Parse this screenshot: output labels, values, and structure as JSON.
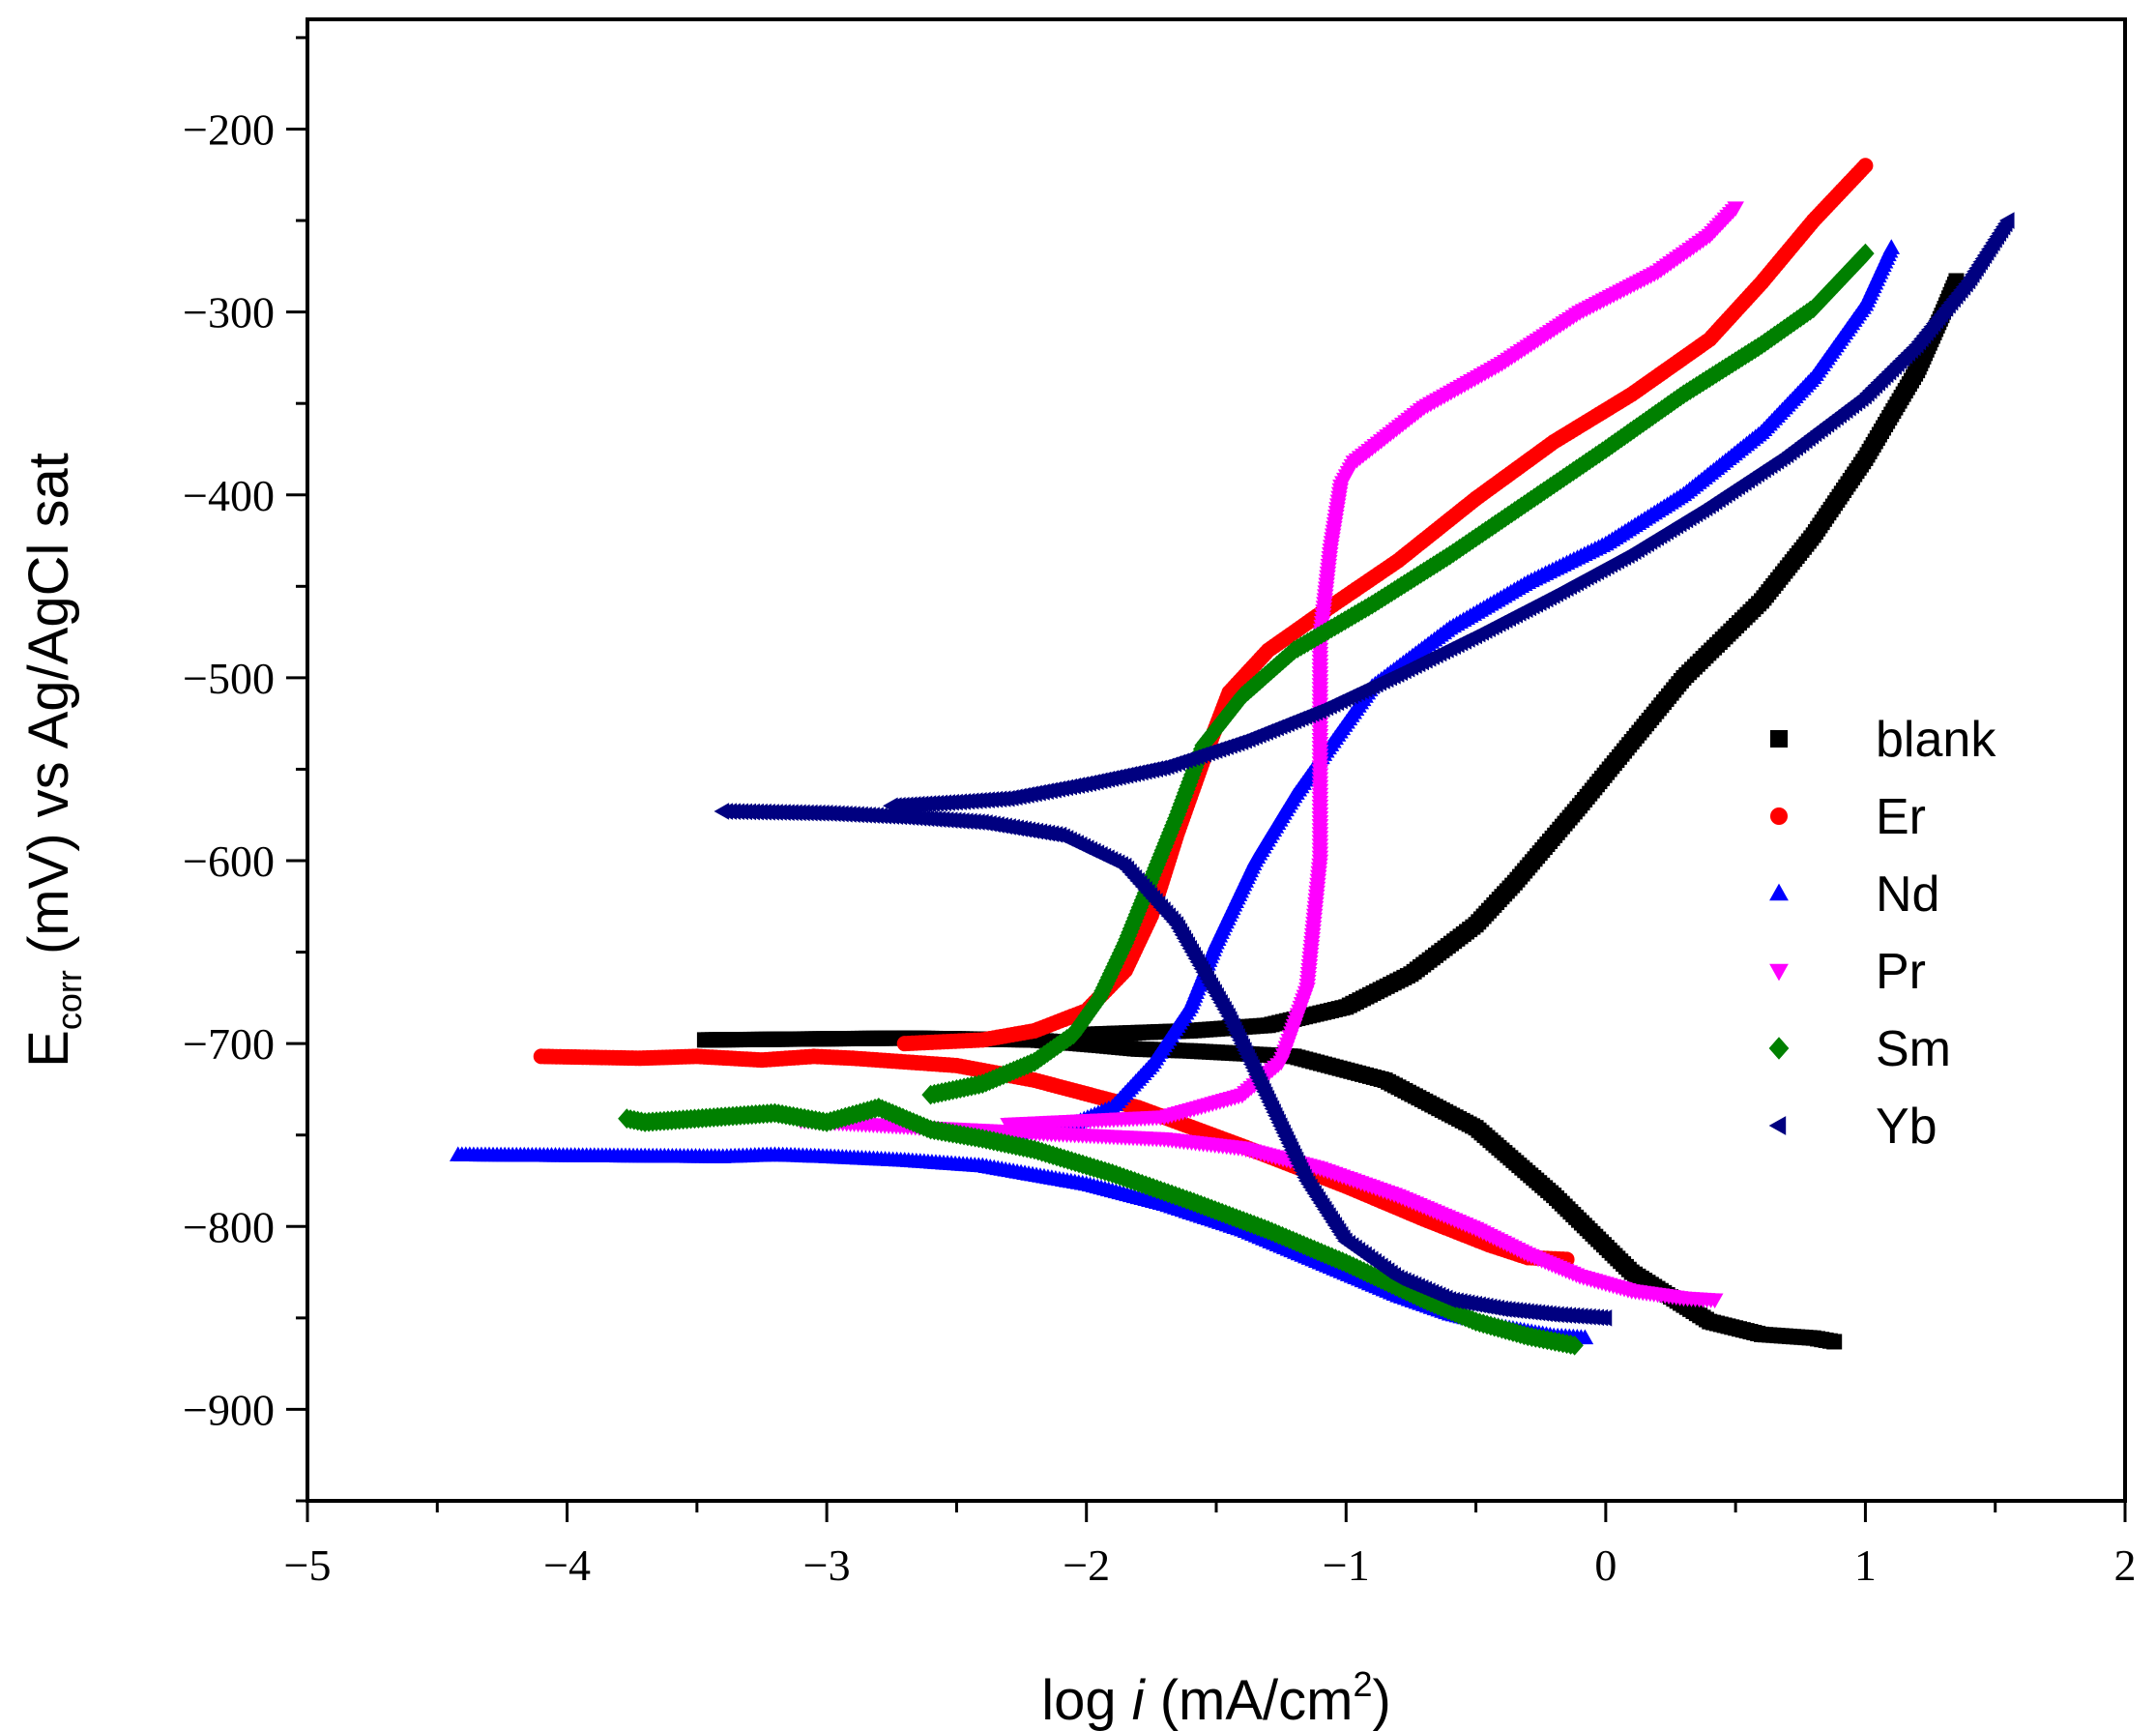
{
  "chart_data": {
    "type": "scatter",
    "title": "",
    "xlabel": {
      "prefix": "log ",
      "italic": "i",
      "unit_open": " (mA/cm",
      "superscript": "2",
      "unit_close": ")"
    },
    "ylabel": {
      "main": "E",
      "subscript": "corr",
      "rest": " (mV) vs Ag/AgCl sat"
    },
    "xlim": [
      -5,
      2
    ],
    "ylim": [
      -950,
      -140
    ],
    "xticks": [
      -5,
      -4,
      -3,
      -2,
      -1,
      0,
      1,
      2
    ],
    "xtick_labels": [
      "−5",
      "−4",
      "−3",
      "−2",
      "−1",
      "0",
      "1",
      "2"
    ],
    "yticks": [
      -900,
      -800,
      -700,
      -600,
      -500,
      -400,
      -300,
      -200
    ],
    "ytick_labels": [
      "−900",
      "−800",
      "−700",
      "−600",
      "−500",
      "−400",
      "−300",
      "−200"
    ],
    "legend_position": "center-right",
    "series": [
      {
        "name": "blank",
        "color": "#000000",
        "marker": "square",
        "cathodic": [
          [
            -3.47,
            -698
          ],
          [
            -2.7,
            -697
          ],
          [
            -2.2,
            -698
          ],
          [
            -1.95,
            -701
          ],
          [
            -1.8,
            -703
          ],
          [
            -1.6,
            -704
          ],
          [
            -1.2,
            -707
          ],
          [
            -0.85,
            -720
          ],
          [
            -0.5,
            -746
          ],
          [
            -0.2,
            -783
          ],
          [
            0.1,
            -825
          ],
          [
            0.4,
            -852
          ],
          [
            0.6,
            -859
          ],
          [
            0.8,
            -861
          ],
          [
            0.88,
            -863
          ]
        ],
        "anodic": [
          [
            -2.0,
            -695
          ],
          [
            -1.8,
            -694
          ],
          [
            -1.6,
            -693
          ],
          [
            -1.3,
            -690
          ],
          [
            -1.0,
            -680
          ],
          [
            -0.75,
            -662
          ],
          [
            -0.5,
            -635
          ],
          [
            -0.35,
            -612
          ],
          [
            -0.1,
            -570
          ],
          [
            0.1,
            -535
          ],
          [
            0.3,
            -500
          ],
          [
            0.6,
            -458
          ],
          [
            0.8,
            -422
          ],
          [
            1.0,
            -380
          ],
          [
            1.2,
            -332
          ],
          [
            1.3,
            -300
          ],
          [
            1.35,
            -283
          ]
        ]
      },
      {
        "name": "Er",
        "color": "#ff0000",
        "marker": "circle",
        "cathodic": [
          [
            -4.1,
            -707
          ],
          [
            -3.72,
            -708
          ],
          [
            -3.5,
            -707
          ],
          [
            -3.25,
            -709
          ],
          [
            -3.05,
            -707
          ],
          [
            -2.9,
            -708
          ],
          [
            -2.7,
            -710
          ],
          [
            -2.5,
            -712
          ],
          [
            -2.2,
            -720
          ],
          [
            -1.8,
            -735
          ],
          [
            -1.4,
            -756
          ],
          [
            -1.0,
            -778
          ],
          [
            -0.7,
            -796
          ],
          [
            -0.45,
            -810
          ],
          [
            -0.3,
            -817
          ],
          [
            -0.15,
            -818
          ]
        ],
        "anodic": [
          [
            -2.7,
            -700
          ],
          [
            -2.4,
            -698
          ],
          [
            -2.2,
            -693
          ],
          [
            -2.0,
            -682
          ],
          [
            -1.85,
            -660
          ],
          [
            -1.75,
            -630
          ],
          [
            -1.65,
            -585
          ],
          [
            -1.55,
            -545
          ],
          [
            -1.45,
            -508
          ],
          [
            -1.3,
            -485
          ],
          [
            -1.1,
            -465
          ],
          [
            -0.8,
            -436
          ],
          [
            -0.5,
            -402
          ],
          [
            -0.2,
            -371
          ],
          [
            0.1,
            -345
          ],
          [
            0.4,
            -315
          ],
          [
            0.6,
            -284
          ],
          [
            0.8,
            -250
          ],
          [
            1.0,
            -220
          ]
        ]
      },
      {
        "name": "Nd",
        "color": "#0000ff",
        "marker": "triangle-up",
        "cathodic": [
          [
            -4.42,
            -761
          ],
          [
            -3.4,
            -762
          ],
          [
            -3.2,
            -761
          ],
          [
            -3.0,
            -762
          ],
          [
            -2.7,
            -764
          ],
          [
            -2.4,
            -767
          ],
          [
            -2.0,
            -777
          ],
          [
            -1.7,
            -788
          ],
          [
            -1.4,
            -802
          ],
          [
            -1.1,
            -820
          ],
          [
            -0.8,
            -838
          ],
          [
            -0.6,
            -848
          ],
          [
            -0.4,
            -855
          ],
          [
            -0.2,
            -860
          ],
          [
            -0.08,
            -861
          ]
        ],
        "anodic": [
          [
            -2.3,
            -750
          ],
          [
            -2.05,
            -744
          ],
          [
            -1.9,
            -735
          ],
          [
            -1.75,
            -712
          ],
          [
            -1.6,
            -680
          ],
          [
            -1.5,
            -645
          ],
          [
            -1.35,
            -600
          ],
          [
            -1.2,
            -565
          ],
          [
            -1.05,
            -535
          ],
          [
            -0.9,
            -505
          ],
          [
            -0.6,
            -473
          ],
          [
            -0.3,
            -448
          ],
          [
            0.0,
            -427
          ],
          [
            0.3,
            -400
          ],
          [
            0.6,
            -366
          ],
          [
            0.8,
            -336
          ],
          [
            1.0,
            -296
          ],
          [
            1.1,
            -265
          ]
        ]
      },
      {
        "name": "Pr",
        "color": "#ff00ff",
        "marker": "triangle-down",
        "cathodic": [
          [
            -3.1,
            -742
          ],
          [
            -2.85,
            -744
          ],
          [
            -2.6,
            -746
          ],
          [
            -2.3,
            -748
          ],
          [
            -2.0,
            -750
          ],
          [
            -1.7,
            -752
          ],
          [
            -1.4,
            -757
          ],
          [
            -1.1,
            -768
          ],
          [
            -0.8,
            -783
          ],
          [
            -0.5,
            -801
          ],
          [
            -0.3,
            -815
          ],
          [
            -0.1,
            -827
          ],
          [
            0.1,
            -835
          ],
          [
            0.3,
            -839
          ],
          [
            0.42,
            -840
          ]
        ],
        "anodic": [
          [
            -2.3,
            -744
          ],
          [
            -2.0,
            -742
          ],
          [
            -1.7,
            -740
          ],
          [
            -1.4,
            -728
          ],
          [
            -1.25,
            -710
          ],
          [
            -1.15,
            -670
          ],
          [
            -1.1,
            -600
          ],
          [
            -1.1,
            -540
          ],
          [
            -1.1,
            -480
          ],
          [
            -1.06,
            -430
          ],
          [
            -1.02,
            -395
          ],
          [
            -0.97,
            -382
          ],
          [
            -0.7,
            -352
          ],
          [
            -0.4,
            -328
          ],
          [
            -0.1,
            -300
          ],
          [
            0.2,
            -278
          ],
          [
            0.4,
            -258
          ],
          [
            0.5,
            -243
          ]
        ]
      },
      {
        "name": "Sm",
        "color": "#008000",
        "marker": "diamond",
        "cathodic": [
          [
            -3.77,
            -741
          ],
          [
            -3.7,
            -743
          ],
          [
            -3.2,
            -738
          ],
          [
            -3.0,
            -743
          ],
          [
            -2.8,
            -735
          ],
          [
            -2.6,
            -747
          ],
          [
            -2.4,
            -752
          ],
          [
            -2.2,
            -758
          ],
          [
            -1.9,
            -771
          ],
          [
            -1.6,
            -786
          ],
          [
            -1.3,
            -802
          ],
          [
            -1.0,
            -820
          ],
          [
            -0.7,
            -840
          ],
          [
            -0.5,
            -852
          ],
          [
            -0.3,
            -860
          ],
          [
            -0.12,
            -865
          ]
        ],
        "anodic": [
          [
            -2.6,
            -728
          ],
          [
            -2.4,
            -722
          ],
          [
            -2.2,
            -710
          ],
          [
            -2.05,
            -695
          ],
          [
            -1.95,
            -675
          ],
          [
            -1.85,
            -645
          ],
          [
            -1.75,
            -610
          ],
          [
            -1.65,
            -575
          ],
          [
            -1.55,
            -537
          ],
          [
            -1.4,
            -510
          ],
          [
            -1.2,
            -485
          ],
          [
            -0.9,
            -460
          ],
          [
            -0.6,
            -433
          ],
          [
            -0.3,
            -404
          ],
          [
            0.0,
            -375
          ],
          [
            0.3,
            -345
          ],
          [
            0.6,
            -318
          ],
          [
            0.8,
            -298
          ],
          [
            1.0,
            -268
          ]
        ]
      },
      {
        "name": "Yb",
        "color": "#000080",
        "marker": "triangle-left",
        "cathodic": [
          [
            -3.4,
            -573
          ],
          [
            -3.0,
            -574
          ],
          [
            -2.7,
            -576
          ],
          [
            -2.4,
            -579
          ],
          [
            -2.1,
            -586
          ],
          [
            -1.85,
            -603
          ],
          [
            -1.65,
            -635
          ],
          [
            -1.45,
            -685
          ],
          [
            -1.3,
            -730
          ],
          [
            -1.15,
            -775
          ],
          [
            -1.0,
            -808
          ],
          [
            -0.8,
            -828
          ],
          [
            -0.6,
            -840
          ],
          [
            -0.4,
            -845
          ],
          [
            -0.2,
            -848
          ],
          [
            0.0,
            -850
          ]
        ],
        "anodic": [
          [
            -2.75,
            -570
          ],
          [
            -2.5,
            -568
          ],
          [
            -2.3,
            -566
          ],
          [
            -2.0,
            -558
          ],
          [
            -1.7,
            -549
          ],
          [
            -1.4,
            -535
          ],
          [
            -1.1,
            -518
          ],
          [
            -0.8,
            -498
          ],
          [
            -0.5,
            -477
          ],
          [
            -0.2,
            -455
          ],
          [
            0.1,
            -432
          ],
          [
            0.4,
            -406
          ],
          [
            0.7,
            -378
          ],
          [
            1.0,
            -346
          ],
          [
            1.2,
            -318
          ],
          [
            1.4,
            -283
          ],
          [
            1.55,
            -250
          ]
        ]
      }
    ]
  }
}
